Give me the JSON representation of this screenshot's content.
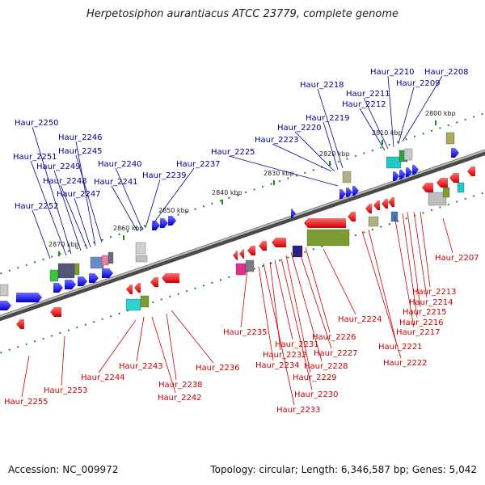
{
  "title": "Herpetosiphon aurantiacus ATCC 23779, complete genome",
  "footer": {
    "accession": "Accession: NC_009972",
    "topology": "Topology: circular; Length: 6,346,587 bp; Genes: 5,042"
  },
  "colors": {
    "top_label": "#00008b",
    "bottom_label": "#cc0000",
    "forward": "#1a1aff",
    "reverse": "#ee1111"
  },
  "tick_labels": [
    "2800 kbp",
    "2810 kbp",
    "2820 kbp",
    "2830 kbp",
    "2840 kbp",
    "2850 kbp",
    "2860 kbp",
    "2870 kbp"
  ],
  "top_genes": [
    "Haur_2208",
    "Haur_2209",
    "Haur_2210",
    "Haur_2211",
    "Haur_2212",
    "Haur_2218",
    "Haur_2219",
    "Haur_2220",
    "Haur_2223",
    "Haur_2225",
    "Haur_2237",
    "Haur_2239",
    "Haur_2240",
    "Haur_2241",
    "Haur_2245",
    "Haur_2246",
    "Haur_2247",
    "Haur_2248",
    "Haur_2249",
    "Haur_2250",
    "Haur_2251",
    "Haur_2252"
  ],
  "bottom_genes": [
    "Haur_2207",
    "Haur_2213",
    "Haur_2214",
    "Haur_2215",
    "Haur_2216",
    "Haur_2217",
    "Haur_2221",
    "Haur_2222",
    "Haur_2224",
    "Haur_2226",
    "Haur_2227",
    "Haur_2228",
    "Haur_2229",
    "Haur_2230",
    "Haur_2231",
    "Haur_2232",
    "Haur_2233",
    "Haur_2234",
    "Haur_2235",
    "Haur_2236",
    "Haur_2238",
    "Haur_2242",
    "Haur_2243",
    "Haur_2244",
    "Haur_2253",
    "Haur_2255"
  ]
}
